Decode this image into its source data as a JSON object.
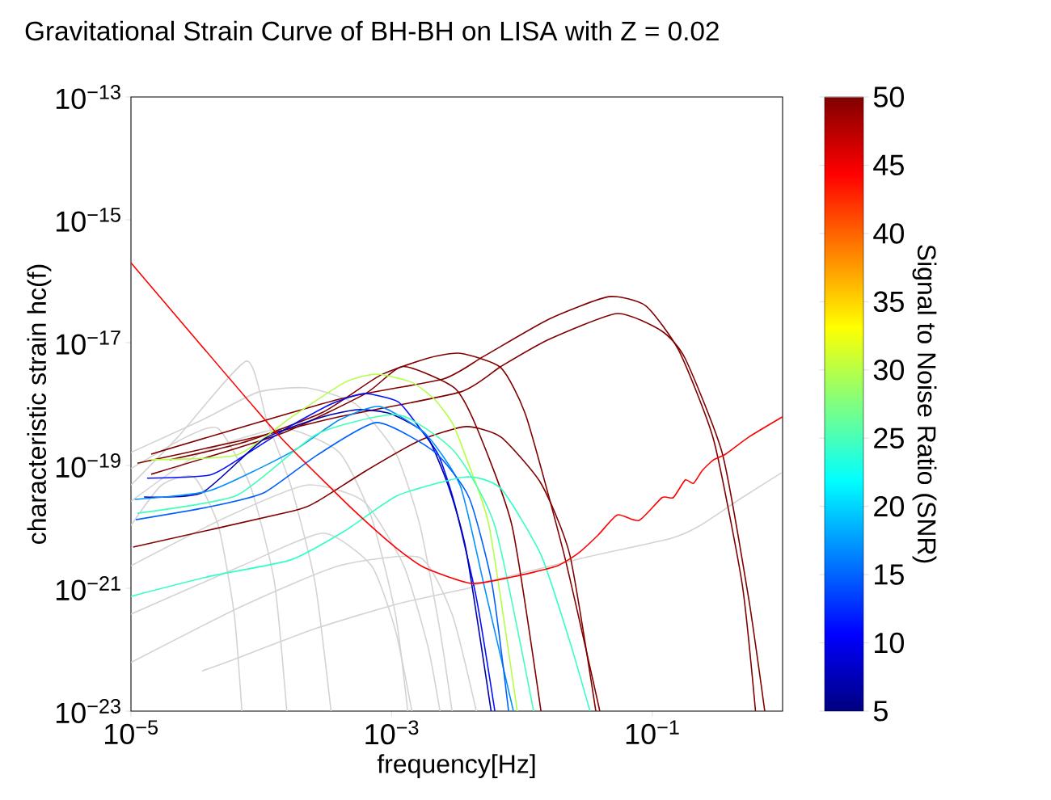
{
  "chart_data": {
    "type": "line",
    "title": "Gravitational Strain Curve of BH-BH on LISA with Z = 0.02",
    "xlabel": "frequency[Hz]",
    "ylabel": "characteristic strain hc(f)",
    "clabel": "Signal to Noise Ratio (SNR)",
    "log": "xy",
    "xlim": [
      1e-05,
      1
    ],
    "ylim": [
      1e-23,
      1e-13
    ],
    "xticks": [
      {
        "value": 1e-05,
        "label": "10$^{−5}$"
      },
      {
        "value": 0.001,
        "label": "10$^{−3}$"
      },
      {
        "value": 0.1,
        "label": "10$^{−1}$"
      }
    ],
    "yticks": [
      {
        "value": 1e-23,
        "label": "10$^{−23}$"
      },
      {
        "value": 1e-21,
        "label": "10$^{−21}$"
      },
      {
        "value": 1e-19,
        "label": "10$^{−19}$"
      },
      {
        "value": 1e-17,
        "label": "10$^{−17}$"
      },
      {
        "value": 1e-15,
        "label": "10$^{−15}$"
      },
      {
        "value": 1e-13,
        "label": "10$^{−13}$"
      }
    ],
    "clim": [
      5,
      50
    ],
    "cticks": [
      5,
      10,
      15,
      20,
      25,
      30,
      35,
      40,
      45,
      50
    ],
    "marker": "none",
    "series": [
      {
        "color": "#d3d3d3",
        "x": [
          1e-05,
          3.51e-05,
          9.5e-05,
          0.000224,
          0.00053,
          0.00107,
          0.00165,
          0.00235,
          0.00291
        ],
        "values": [
          1.63e-19,
          5.5e-19,
          1.57e-18,
          1.83e-18,
          1e-18,
          1.63e-19,
          1.06e-20,
          2.07e-22,
          1e-23
        ]
      },
      {
        "color": "#d3d3d3",
        "x": [
          1e-05,
          2.29e-05,
          7.7e-05,
          0.00011,
          0.000168,
          0.000258,
          0.000343
        ],
        "values": [
          4.8e-20,
          2.9e-19,
          5e-18,
          5.5e-19,
          4.8e-20,
          1.27e-21,
          1e-23
        ]
      },
      {
        "color": "#d3d3d3",
        "x": [
          1e-05,
          3.51e-05,
          0.000146,
          0.000396,
          0.0007,
          0.00107,
          0.00133
        ],
        "values": [
          2.6e-20,
          1.63e-19,
          4e-19,
          1.63e-19,
          1.44e-20,
          3.8e-22,
          1e-23
        ]
      },
      {
        "color": "#d3d3d3",
        "x": [
          1e-05,
          5.38e-05,
          0.000224,
          0.00061,
          0.00124,
          0.0019,
          0.00235
        ],
        "values": [
          2.33e-21,
          1.44e-20,
          4.8e-20,
          2.6e-20,
          2.33e-21,
          1.13e-22,
          1e-23
        ]
      },
      {
        "color": "#d3d3d3",
        "x": [
          1e-05,
          2.64e-05,
          4.67e-05,
          8.2e-05,
          0.000126,
          0.000157
        ],
        "values": [
          8.9e-20,
          2.9e-19,
          4e-19,
          4.8e-20,
          1.27e-21,
          1e-23
        ]
      },
      {
        "color": "#d3d3d3",
        "x": [
          1e-05,
          7.1e-05,
          0.000298,
          0.0007,
          0.00107,
          0.00143
        ],
        "values": [
          3.8e-22,
          2.33e-21,
          7.9e-21,
          2.33e-21,
          2.07e-22,
          1e-23
        ]
      },
      {
        "color": "#d3d3d3",
        "x": [
          1e-05,
          1.72e-05,
          3.04e-05,
          4.67e-05,
          6.2e-05,
          7.1e-05
        ],
        "values": [
          1.06e-20,
          4.8e-20,
          6.5e-20,
          1.06e-20,
          3.8e-22,
          1e-23
        ]
      },
      {
        "color": "#d3d3d3",
        "x": [
          1e-05,
          7.1e-05,
          0.000396,
          0.00165,
          0.00291,
          0.00447
        ],
        "values": [
          6.2e-23,
          5.1e-22,
          2.33e-21,
          3.16e-21,
          3.8e-22,
          1e-23
        ]
      },
      {
        "color": "#d3d3d3",
        "x": [
          3.51e-05,
          5.9e-05,
          0.000269,
          0.00112,
          0.00387,
          0.00453,
          0.0285,
          0.139,
          0.229,
          0.49,
          0.98
        ],
        "values": [
          4.5e-23,
          6.7e-23,
          2.26e-22,
          5.6e-22,
          1e-21,
          1.16e-21,
          3.07e-21,
          6.5e-21,
          1.03e-20,
          3e-20,
          7.6e-20
        ]
      },
      {
        "color": "#800000",
        "x": [
          1.43e-05,
          0.000396,
          0.00249,
          0.0051,
          0.0161,
          0.0463,
          0.089,
          0.16,
          0.296,
          0.49,
          0.62
        ],
        "values": [
          1.53e-19,
          1.2e-18,
          2.56e-18,
          6e-18,
          2.41e-17,
          5.6e-17,
          4e-17,
          7.4e-18,
          2.6e-19,
          1.16e-21,
          1e-23
        ]
      },
      {
        "color": "#800000",
        "x": [
          1.12e-05,
          7.1e-05,
          0.000396,
          0.00336,
          0.0069,
          0.0161,
          0.054,
          0.119,
          0.179,
          0.346,
          0.55,
          0.73
        ],
        "values": [
          1.09e-19,
          2.56e-19,
          6.2e-19,
          1.57e-18,
          4.1e-18,
          1.13e-17,
          2.98e-17,
          1.53e-17,
          5.5e-18,
          1.53e-19,
          6.7e-22,
          1e-23
        ]
      },
      {
        "color": "#800000",
        "x": [
          1.98e-05,
          7.1e-05,
          0.000298,
          0.00081,
          0.0019,
          0.00336,
          0.0069,
          0.0108,
          0.0211,
          0.0396
        ],
        "values": [
          1.24e-19,
          2.33e-19,
          7.4e-19,
          2.9e-18,
          5.6e-18,
          6.7e-18,
          3.9e-18,
          6.2e-19,
          3.5e-21,
          1e-23
        ]
      },
      {
        "color": "#800000",
        "x": [
          1.43e-05,
          0.00014,
          0.00063,
          0.00122,
          0.00304,
          0.00453,
          0.0084,
          0.014
        ],
        "values": [
          7.2e-20,
          3.26e-19,
          1.48e-18,
          4.1e-18,
          1.83e-18,
          4e-19,
          1.03e-20,
          1e-23
        ]
      },
      {
        "color": "#800000",
        "x": [
          1.04e-05,
          0.000168,
          0.000269,
          0.00063,
          0.00165,
          0.00372,
          0.0069,
          0.014,
          0.0233,
          0.0369
        ],
        "values": [
          4.7e-21,
          1.78e-20,
          2.6e-20,
          8.1e-20,
          2.56e-19,
          4.3e-19,
          2.9e-19,
          5.1e-20,
          3.5e-21,
          1e-23
        ]
      },
      {
        "color": "#b2ff46",
        "x": [
          1.43e-05,
          6.5e-05,
          0.000168,
          0.000438,
          0.00077,
          0.00143,
          0.00213,
          0.00291,
          0.00372,
          0.0056,
          0.0092
        ],
        "values": [
          1.24e-19,
          1.48e-19,
          6e-19,
          2.26e-18,
          3.07e-18,
          2.26e-18,
          1.2e-18,
          5e-19,
          1.36e-19,
          1.03e-20,
          1e-23
        ]
      },
      {
        "color": "#0010ff",
        "x": [
          1.33e-05,
          4.05e-05,
          7.5e-05,
          0.000168,
          0.000343,
          0.00061,
          0.00112,
          0.00165,
          0.00229,
          0.00304,
          0.00447,
          0.0062
        ],
        "values": [
          6.2e-20,
          7e-20,
          1.48e-19,
          4.4e-19,
          1e-18,
          1.48e-18,
          1.09e-18,
          4e-19,
          1.48e-19,
          2.41e-20,
          7e-22,
          1e-23
        ]
      },
      {
        "color": "#0000b0",
        "x": [
          1.26e-05,
          3.51e-05,
          0.000105,
          0.000298,
          0.00055,
          0.00097,
          0.00182,
          0.00271,
          0.00372,
          0.0058
        ],
        "values": [
          3.07e-20,
          3.6e-20,
          2.7e-19,
          6.2e-19,
          8.1e-19,
          7e-19,
          3.26e-19,
          4.8e-20,
          4.3e-21,
          1e-23
        ]
      },
      {
        "color": "#0090ff",
        "x": [
          1.07e-05,
          4.05e-05,
          0.000168,
          0.000396,
          0.00081,
          0.00182,
          0.00336,
          0.0051,
          0.0086
        ],
        "values": [
          2.8e-20,
          3.9e-20,
          1.63e-19,
          5.5e-19,
          9.1e-19,
          3.26e-19,
          4.7e-20,
          1.16e-21,
          1e-23
        ]
      },
      {
        "color": "#0060ff",
        "x": [
          1.09e-05,
          4.05e-05,
          0.000105,
          0.000269,
          0.00077,
          0.00213,
          0.00393,
          0.0059,
          0.0079
        ],
        "values": [
          1.31e-20,
          2.13e-20,
          3.6e-20,
          1.48e-19,
          5e-19,
          1.67e-19,
          3e-20,
          1.16e-21,
          1e-23
        ]
      },
      {
        "color": "#40ffb7",
        "x": [
          1.12e-05,
          6.5e-05,
          0.000269,
          0.00112,
          0.00304,
          0.0062,
          0.0123
        ],
        "values": [
          1.67e-20,
          3.26e-20,
          3.26e-19,
          6.7e-19,
          1.67e-19,
          1.03e-20,
          1e-23
        ]
      },
      {
        "color": "#30ffc6",
        "x": [
          1e-05,
          4.05e-05,
          0.000168,
          0.000438,
          0.00112,
          0.00372,
          0.0069,
          0.014,
          0.0233,
          0.0333
        ],
        "values": [
          7.4e-22,
          1.57e-21,
          2.9e-21,
          8.6e-21,
          3.26e-20,
          6.5e-20,
          4.2e-20,
          3.5e-21,
          1.36e-22,
          1e-23
        ]
      },
      {
        "color": "#ff0000",
        "x": [
          1e-05,
          0.000126,
          0.000358,
          0.00063,
          0.00112,
          0.00182,
          0.0041,
          0.0084,
          0.0181,
          0.0269,
          0.0385,
          0.054,
          0.079,
          0.119,
          0.145,
          0.179,
          0.207,
          0.242,
          0.296,
          0.366,
          0.55,
          1
        ],
        "values": [
          2e-16,
          3.7e-19,
          3.9e-20,
          1.24e-20,
          4.3e-21,
          2.13e-21,
          1.2e-21,
          1.53e-21,
          2.26e-21,
          3.7e-21,
          7.4e-21,
          1.57e-20,
          1.27e-20,
          3e-20,
          3e-20,
          5.8e-20,
          5.1e-20,
          8.3e-20,
          1.24e-19,
          1.53e-19,
          2.9e-19,
          6.2e-19
        ]
      }
    ]
  }
}
